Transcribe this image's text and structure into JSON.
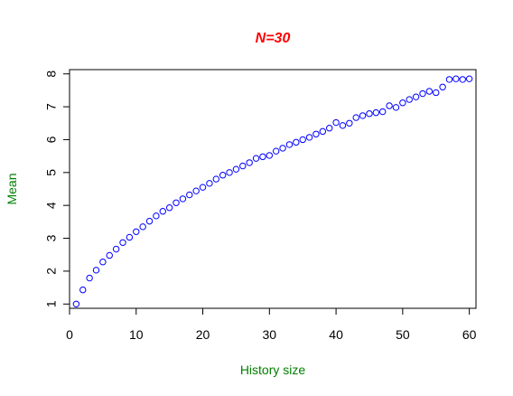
{
  "chart_data": {
    "type": "scatter",
    "title": "N=30",
    "xlabel": "History size",
    "ylabel": "Mean",
    "xlim": [
      0,
      61
    ],
    "ylim": [
      0.87,
      8.13
    ],
    "xticks": [
      0,
      10,
      20,
      30,
      40,
      50,
      60
    ],
    "yticks": [
      1,
      2,
      3,
      4,
      5,
      6,
      7,
      8
    ],
    "grid": false,
    "legend": "none",
    "marker": "open-circle",
    "colors": {
      "title": "#ff0000",
      "axis_labels": "#008000",
      "points": "#0000ff",
      "axes": "#000000"
    },
    "series": [
      {
        "x": [
          1,
          2,
          3,
          4,
          5,
          6,
          7,
          8,
          9,
          10,
          11,
          12,
          13,
          14,
          15,
          16,
          17,
          18,
          19,
          20,
          21,
          22,
          23,
          24,
          25,
          26,
          27,
          28,
          29,
          30,
          31,
          32,
          33,
          34,
          35,
          36,
          37,
          38,
          39,
          40,
          41,
          42,
          43,
          44,
          45,
          46,
          47,
          48,
          49,
          50,
          51,
          52,
          53,
          54,
          55,
          56,
          57,
          58,
          59,
          60
        ],
        "y": [
          1.0,
          1.43,
          1.79,
          2.03,
          2.28,
          2.48,
          2.67,
          2.87,
          3.03,
          3.2,
          3.35,
          3.52,
          3.68,
          3.82,
          3.93,
          4.08,
          4.2,
          4.32,
          4.44,
          4.55,
          4.67,
          4.8,
          4.92,
          5.0,
          5.1,
          5.2,
          5.3,
          5.43,
          5.48,
          5.52,
          5.65,
          5.74,
          5.85,
          5.92,
          6.0,
          6.07,
          6.17,
          6.25,
          6.35,
          6.52,
          6.43,
          6.5,
          6.67,
          6.73,
          6.79,
          6.82,
          6.85,
          7.03,
          6.98,
          7.12,
          7.22,
          7.3,
          7.4,
          7.47,
          7.43,
          7.6,
          7.83,
          7.85,
          7.83,
          7.85
        ]
      }
    ]
  }
}
